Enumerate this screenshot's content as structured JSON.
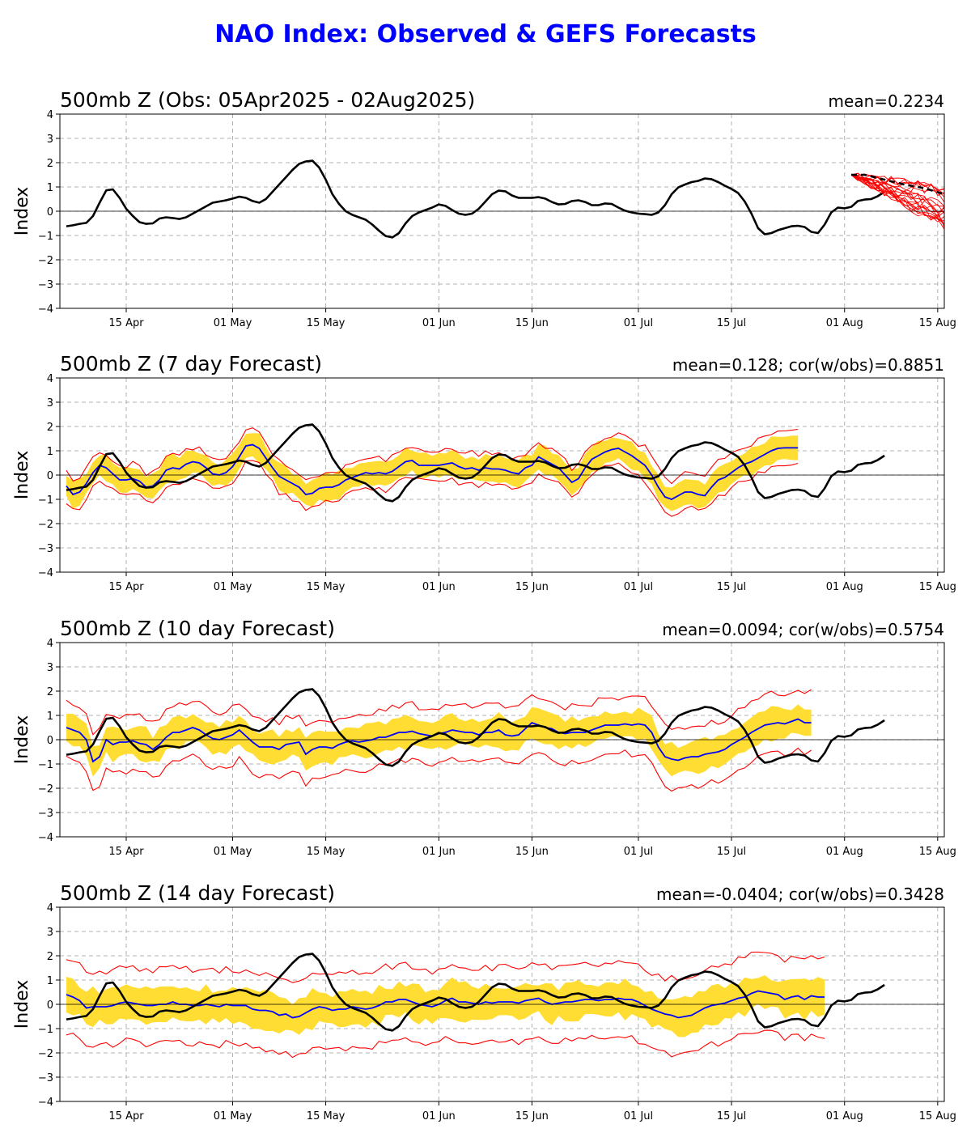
{
  "title": "NAO Index: Observed & GEFS Forecasts",
  "colors": {
    "title": "#0000ff",
    "observed": "#000000",
    "ensemble_mean": "#0000ff",
    "spread_band": "#ffdd33",
    "extreme_lines": "#ff0000",
    "members": "#ff0000"
  },
  "chart_data": [
    {
      "type": "line",
      "title": "500mb Z (Obs: 05Apr2025 - 02Aug2025)",
      "stat": "mean=0.2234",
      "ylabel": "Index",
      "ylim": [
        -4,
        4
      ],
      "yticks": [
        -4,
        -3,
        -2,
        -1,
        0,
        1,
        2,
        3,
        4
      ],
      "x_day_range": [
        0,
        132
      ],
      "xticks": [
        {
          "day": 10,
          "label": "15 Apr"
        },
        {
          "day": 26,
          "label": "01 May"
        },
        {
          "day": 40,
          "label": "15 May"
        },
        {
          "day": 57,
          "label": "01 Jun"
        },
        {
          "day": 71,
          "label": "15 Jun"
        },
        {
          "day": 87,
          "label": "01 Jul"
        },
        {
          "day": 101,
          "label": "15 Jul"
        },
        {
          "day": 118,
          "label": "01 Aug"
        },
        {
          "day": 132,
          "label": "15 Aug"
        }
      ],
      "grid": true,
      "observed": "obs",
      "forecast_members": {
        "start_day": 119,
        "end_day": 135,
        "n_members": 20,
        "start_value": 1.5,
        "end_center": -0.1,
        "end_spread": 0.9
      },
      "forecast_mean": {
        "days": [
          119,
          121,
          124,
          127,
          130,
          133,
          135
        ],
        "values": [
          1.5,
          1.5,
          1.3,
          1.1,
          0.95,
          0.7,
          0.35
        ]
      }
    },
    {
      "type": "line",
      "title": "500mb Z (7 day Forecast)",
      "stat": "mean=0.128; cor(w/obs)=0.8851",
      "ylabel": "Index",
      "ylim": [
        -4,
        4
      ],
      "yticks": [
        -4,
        -3,
        -2,
        -1,
        0,
        1,
        2,
        3,
        4
      ],
      "x_day_range": [
        0,
        132
      ],
      "xticks": [
        {
          "day": 10,
          "label": "15 Apr"
        },
        {
          "day": 26,
          "label": "01 May"
        },
        {
          "day": 40,
          "label": "15 May"
        },
        {
          "day": 57,
          "label": "01 Jun"
        },
        {
          "day": 71,
          "label": "15 Jun"
        },
        {
          "day": 87,
          "label": "01 Jul"
        },
        {
          "day": 101,
          "label": "15 Jul"
        },
        {
          "day": 118,
          "label": "01 Aug"
        },
        {
          "day": 132,
          "label": "15 Aug"
        }
      ],
      "grid": true,
      "observed": "obs",
      "forecast_end_day": 125,
      "ens_mean": [
        -0.45,
        -0.8,
        -0.7,
        -0.35,
        0.1,
        0.4,
        0.3,
        0.05,
        -0.2,
        -0.2,
        -0.15,
        -0.25,
        -0.5,
        -0.45,
        -0.2,
        0.2,
        0.3,
        0.25,
        0.45,
        0.55,
        0.5,
        0.3,
        0.05,
        0.0,
        0.1,
        0.35,
        0.75,
        1.2,
        1.25,
        1.1,
        0.7,
        0.3,
        -0.05,
        -0.2,
        -0.35,
        -0.5,
        -0.8,
        -0.75,
        -0.55,
        -0.5,
        -0.5,
        -0.4,
        -0.2,
        -0.1,
        0.0,
        0.1,
        0.05,
        0.1,
        0.05,
        0.15,
        0.35,
        0.55,
        0.6,
        0.4,
        0.4,
        0.4,
        0.4,
        0.45,
        0.5,
        0.35,
        0.25,
        0.3,
        0.2,
        0.3,
        0.25,
        0.25,
        0.2,
        0.1,
        0.05,
        0.3,
        0.4,
        0.75,
        0.6,
        0.45,
        0.3,
        0.0,
        -0.3,
        -0.15,
        0.3,
        0.65,
        0.8,
        0.95,
        1.05,
        1.1,
        0.95,
        0.8,
        0.6,
        0.4,
        0.0,
        -0.5,
        -0.9,
        -1.0,
        -0.85,
        -0.7,
        -0.7,
        -0.8,
        -0.85,
        -0.5,
        -0.2,
        -0.1,
        0.1,
        0.3,
        0.45,
        0.55,
        0.7,
        0.85,
        1.0,
        1.1,
        1.12,
        1.12,
        1.12
      ],
      "band_half": 0.5,
      "red_upper_offset": 0.6,
      "red_lower_offset": 0.65
    },
    {
      "type": "line",
      "title": "500mb Z (10 day Forecast)",
      "stat": "mean=0.0094; cor(w/obs)=0.5754",
      "ylabel": "Index",
      "ylim": [
        -4,
        4
      ],
      "yticks": [
        -4,
        -3,
        -2,
        -1,
        0,
        1,
        2,
        3,
        4
      ],
      "x_day_range": [
        0,
        132
      ],
      "xticks": [
        {
          "day": 10,
          "label": "15 Apr"
        },
        {
          "day": 26,
          "label": "01 May"
        },
        {
          "day": 40,
          "label": "15 May"
        },
        {
          "day": 57,
          "label": "01 Jun"
        },
        {
          "day": 71,
          "label": "15 Jun"
        },
        {
          "day": 87,
          "label": "01 Jul"
        },
        {
          "day": 101,
          "label": "15 Jul"
        },
        {
          "day": 118,
          "label": "01 Aug"
        },
        {
          "day": 132,
          "label": "15 Aug"
        }
      ],
      "grid": true,
      "observed": "obs",
      "forecast_end_day": 128,
      "ens_mean": [
        0.5,
        0.4,
        0.3,
        0.0,
        -0.9,
        -0.7,
        0.0,
        -0.2,
        -0.1,
        -0.1,
        -0.05,
        -0.15,
        -0.2,
        -0.4,
        -0.2,
        0.1,
        0.3,
        0.3,
        0.4,
        0.5,
        0.4,
        0.2,
        0.05,
        0.0,
        0.1,
        0.2,
        0.4,
        0.15,
        -0.1,
        -0.3,
        -0.3,
        -0.3,
        -0.4,
        -0.2,
        -0.15,
        -0.1,
        -0.6,
        -0.4,
        -0.3,
        -0.3,
        -0.35,
        -0.2,
        -0.1,
        -0.05,
        -0.1,
        -0.05,
        0.0,
        0.1,
        0.1,
        0.2,
        0.3,
        0.3,
        0.35,
        0.25,
        0.2,
        0.15,
        0.25,
        0.3,
        0.4,
        0.35,
        0.3,
        0.3,
        0.2,
        0.3,
        0.3,
        0.4,
        0.2,
        0.15,
        0.2,
        0.45,
        0.7,
        0.6,
        0.5,
        0.45,
        0.3,
        0.25,
        0.3,
        0.3,
        0.3,
        0.4,
        0.5,
        0.6,
        0.6,
        0.6,
        0.65,
        0.6,
        0.65,
        0.6,
        0.3,
        -0.3,
        -0.7,
        -0.8,
        -0.85,
        -0.75,
        -0.7,
        -0.7,
        -0.6,
        -0.55,
        -0.5,
        -0.4,
        -0.2,
        -0.05,
        0.1,
        0.3,
        0.45,
        0.6,
        0.65,
        0.7,
        0.65,
        0.75,
        0.85,
        0.7,
        0.7
      ],
      "band_half": 0.6,
      "red_upper_offset": 1.1,
      "red_lower_offset": 1.2
    },
    {
      "type": "line",
      "title": "500mb Z (14 day Forecast)",
      "stat": "mean=-0.0404; cor(w/obs)=0.3428",
      "ylabel": "Index",
      "ylim": [
        -4,
        4
      ],
      "yticks": [
        -4,
        -3,
        -2,
        -1,
        0,
        1,
        2,
        3,
        4
      ],
      "x_day_range": [
        0,
        132
      ],
      "xticks": [
        {
          "day": 10,
          "label": "15 Apr"
        },
        {
          "day": 26,
          "label": "01 May"
        },
        {
          "day": 40,
          "label": "15 May"
        },
        {
          "day": 57,
          "label": "01 Jun"
        },
        {
          "day": 71,
          "label": "15 Jun"
        },
        {
          "day": 87,
          "label": "01 Jul"
        },
        {
          "day": 101,
          "label": "15 Jul"
        },
        {
          "day": 118,
          "label": "01 Aug"
        },
        {
          "day": 132,
          "label": "15 Aug"
        }
      ],
      "grid": true,
      "observed": "obs",
      "forecast_end_day": 132,
      "ens_mean": [
        0.4,
        0.3,
        0.15,
        -0.15,
        -0.1,
        -0.1,
        -0.1,
        -0.05,
        0.05,
        0.1,
        0.05,
        0.0,
        -0.05,
        -0.05,
        0.0,
        0.0,
        0.1,
        0.0,
        0.0,
        -0.05,
        -0.05,
        0.0,
        -0.05,
        -0.1,
        0.0,
        -0.05,
        -0.05,
        -0.05,
        -0.2,
        -0.25,
        -0.25,
        -0.3,
        -0.45,
        -0.4,
        -0.55,
        -0.5,
        -0.35,
        -0.2,
        -0.1,
        -0.15,
        -0.25,
        -0.2,
        -0.2,
        -0.1,
        -0.15,
        -0.2,
        -0.15,
        -0.05,
        0.1,
        0.1,
        0.2,
        0.2,
        0.1,
        0.0,
        -0.05,
        -0.1,
        0.0,
        0.15,
        0.25,
        0.1,
        0.1,
        0.05,
        0.0,
        0.1,
        0.05,
        0.1,
        0.1,
        0.1,
        0.05,
        0.15,
        0.2,
        0.25,
        0.1,
        0.0,
        0.05,
        0.1,
        0.1,
        0.15,
        0.2,
        0.2,
        0.15,
        0.2,
        0.2,
        0.25,
        0.2,
        0.2,
        0.1,
        -0.05,
        -0.2,
        -0.3,
        -0.4,
        -0.45,
        -0.55,
        -0.5,
        -0.45,
        -0.3,
        -0.15,
        -0.05,
        0.0,
        0.05,
        0.15,
        0.25,
        0.3,
        0.45,
        0.55,
        0.5,
        0.45,
        0.4,
        0.2,
        0.3,
        0.35,
        0.2,
        0.35,
        0.3,
        0.3
      ],
      "band_half": 0.7,
      "red_upper_offset": 1.45,
      "red_lower_offset": 1.6
    }
  ],
  "obs_series": {
    "start_day": 0,
    "values": [
      -0.62,
      -0.58,
      -0.52,
      -0.48,
      -0.2,
      0.35,
      0.86,
      0.9,
      0.55,
      0.1,
      -0.2,
      -0.45,
      -0.52,
      -0.5,
      -0.3,
      -0.25,
      -0.28,
      -0.32,
      -0.25,
      -0.1,
      0.05,
      0.2,
      0.35,
      0.4,
      0.45,
      0.52,
      0.6,
      0.55,
      0.42,
      0.35,
      0.5,
      0.8,
      1.1,
      1.4,
      1.7,
      1.95,
      2.05,
      2.08,
      1.8,
      1.3,
      0.7,
      0.3,
      0.0,
      -0.15,
      -0.25,
      -0.35,
      -0.55,
      -0.8,
      -1.02,
      -1.08,
      -0.9,
      -0.5,
      -0.2,
      -0.05,
      0.05,
      0.15,
      0.28,
      0.22,
      0.05,
      -0.1,
      -0.15,
      -0.1,
      0.1,
      0.4,
      0.7,
      0.85,
      0.82,
      0.65,
      0.55,
      0.55,
      0.55,
      0.58,
      0.52,
      0.38,
      0.28,
      0.3,
      0.42,
      0.45,
      0.38,
      0.25,
      0.25,
      0.32,
      0.3,
      0.15,
      0.02,
      -0.05,
      -0.1,
      -0.12,
      -0.15,
      -0.05,
      0.25,
      0.7,
      0.98,
      1.1,
      1.2,
      1.25,
      1.35,
      1.32,
      1.2,
      1.05,
      0.92,
      0.75,
      0.4,
      -0.1,
      -0.7,
      -0.95,
      -0.9,
      -0.78,
      -0.7,
      -0.62,
      -0.6,
      -0.65,
      -0.85,
      -0.9,
      -0.55,
      -0.05,
      0.15,
      0.12,
      0.18,
      0.42,
      0.48,
      0.5,
      0.62,
      0.8
    ]
  }
}
